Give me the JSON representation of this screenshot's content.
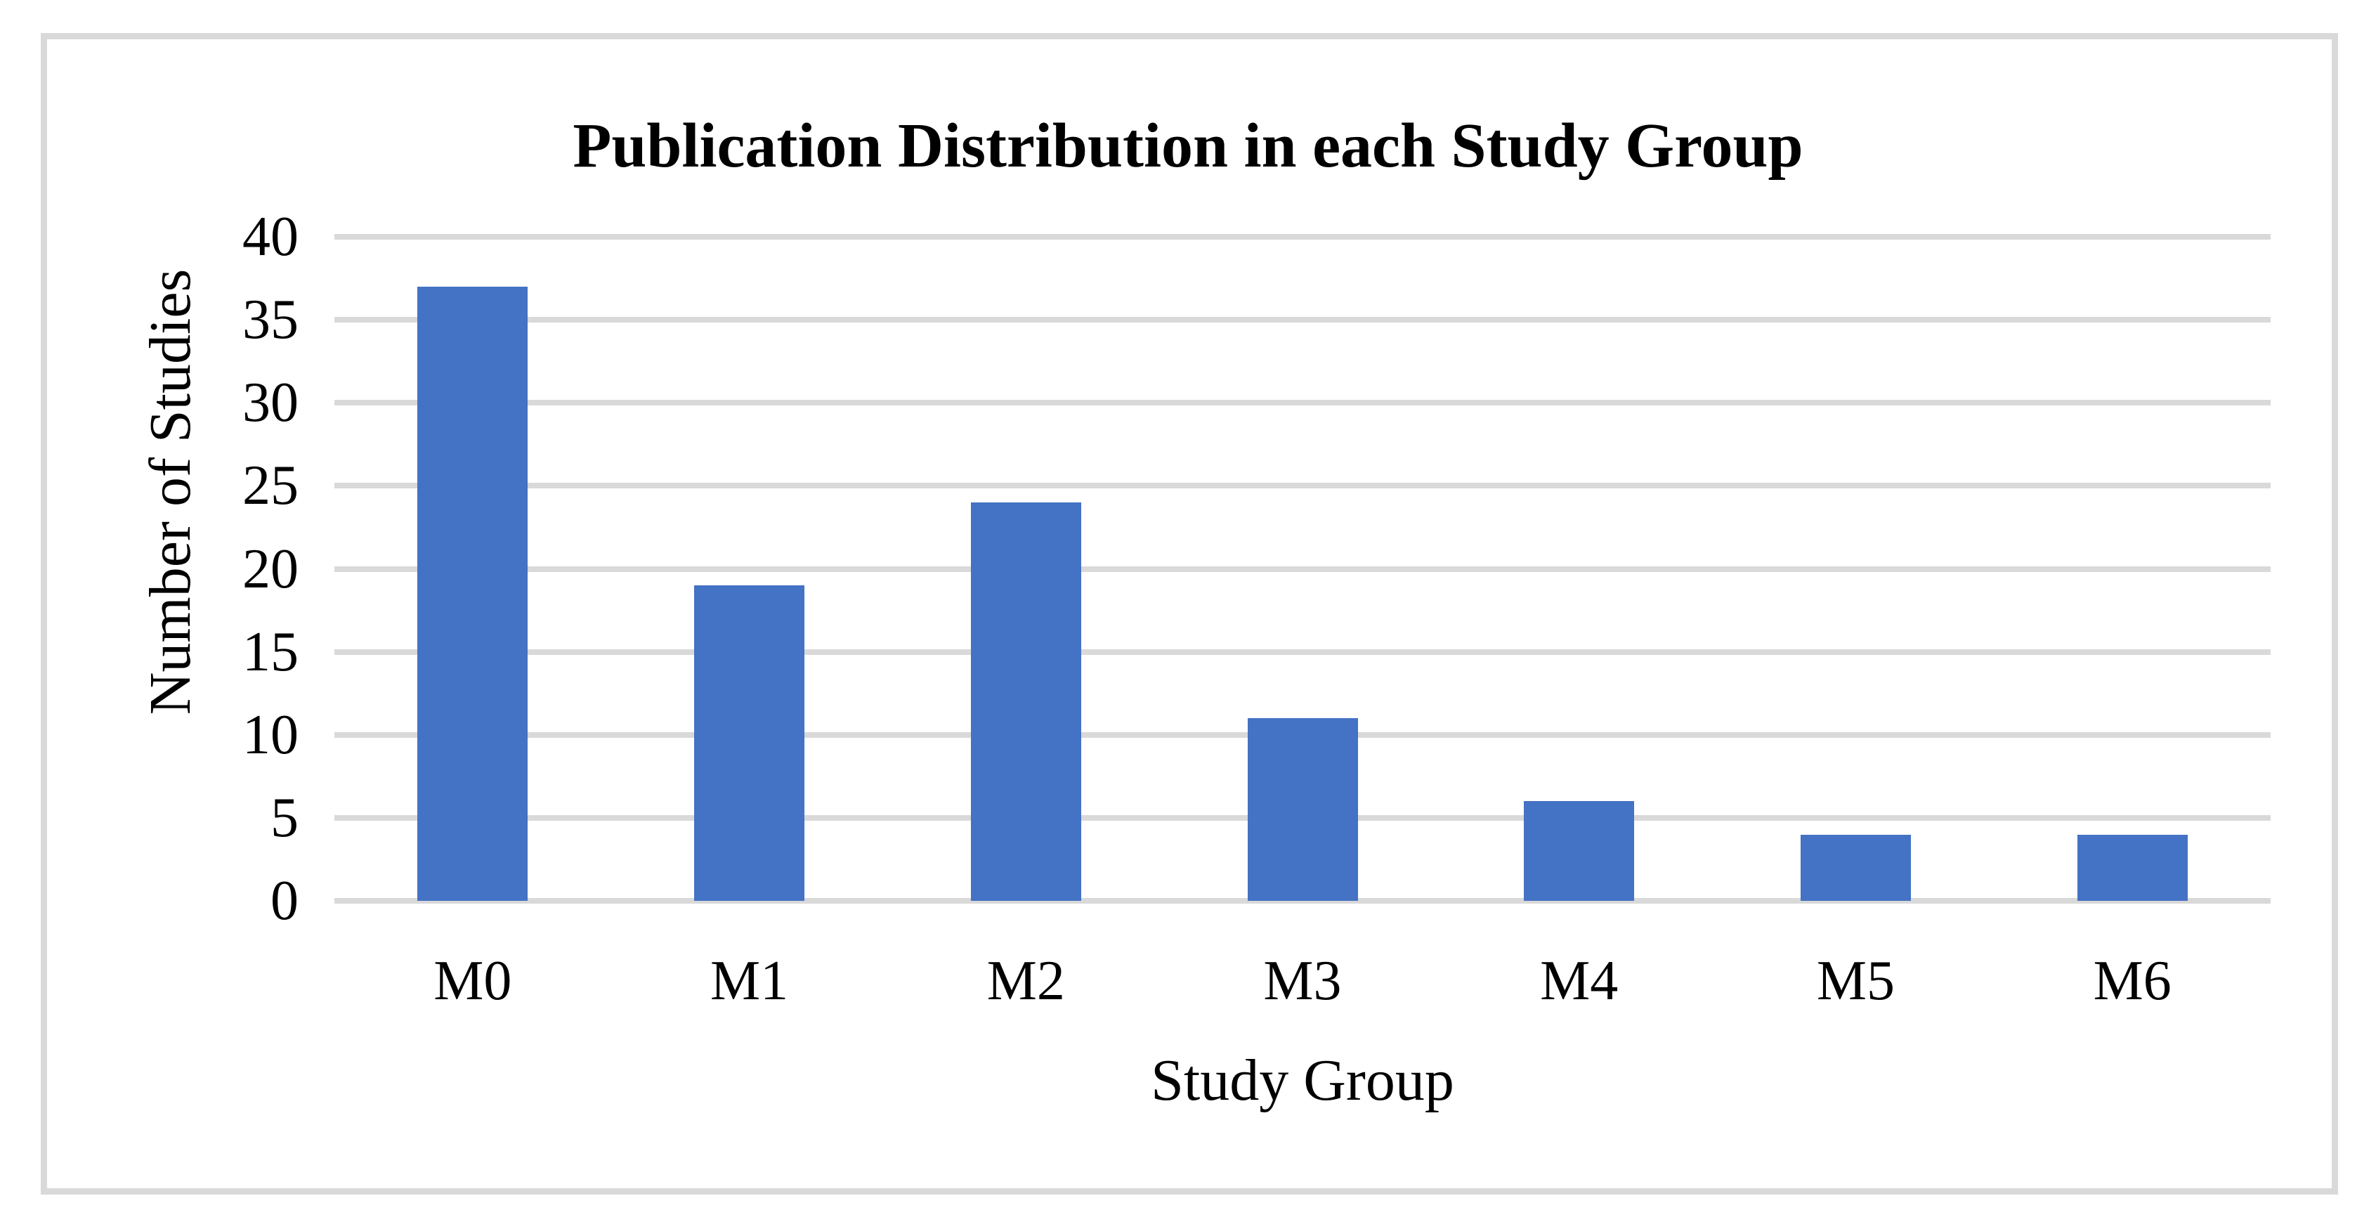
{
  "figure": {
    "background": "#ffffff",
    "frame_color": "#d9d9d9"
  },
  "chart_data": {
    "type": "bar",
    "title": "Publication Distribution in each Study Group",
    "xlabel": "Study Group",
    "ylabel": "Number of Studies",
    "categories": [
      "M0",
      "M1",
      "M2",
      "M3",
      "M4",
      "M5",
      "M6"
    ],
    "values": [
      37,
      19,
      24,
      11,
      6,
      4,
      4
    ],
    "ylim": [
      0,
      40
    ],
    "yticks": [
      0,
      5,
      10,
      15,
      20,
      25,
      30,
      35,
      40
    ],
    "bar_color": "#4472C4",
    "gridline_color": "#d9d9d9",
    "grid": true,
    "legend": "none"
  }
}
